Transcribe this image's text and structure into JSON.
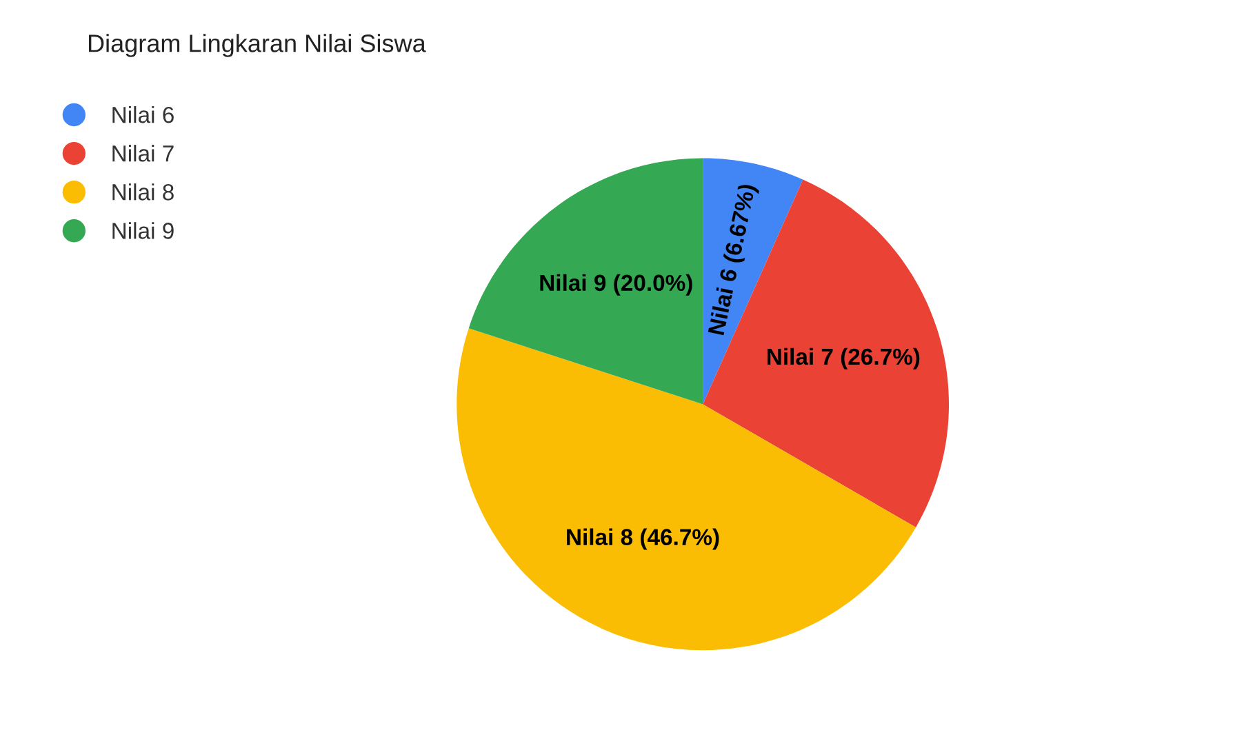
{
  "chart_data": {
    "type": "pie",
    "title": "Diagram Lingkaran Nilai Siswa",
    "categories": [
      "Nilai 6",
      "Nilai 7",
      "Nilai 8",
      "Nilai 9"
    ],
    "values": [
      6.67,
      26.67,
      46.66,
      20.0
    ],
    "value_labels": [
      "(6.67%)",
      "(26.7%)",
      "(46.7%)",
      "(20.0%)"
    ],
    "colors": [
      "#4285f4",
      "#ea4335",
      "#fbbc04",
      "#34a853"
    ],
    "legend": "top left"
  }
}
